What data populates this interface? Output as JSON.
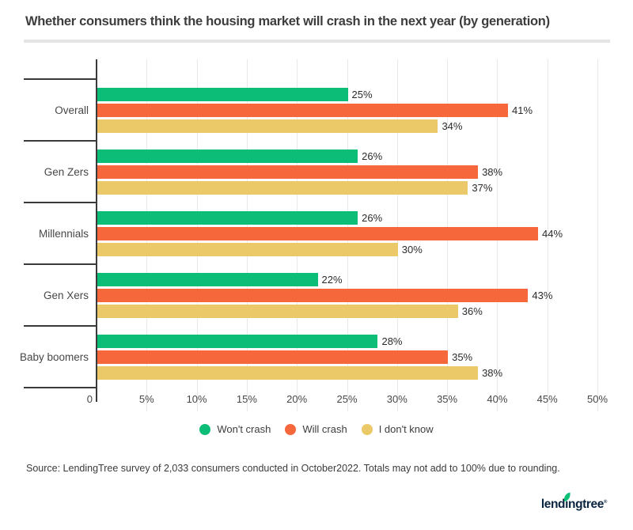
{
  "title": "Whether consumers think the housing market will crash in the next year (by generation)",
  "chart_data": {
    "type": "bar",
    "orientation": "horizontal",
    "title": "Whether consumers think the housing market will crash in the next year (by generation)",
    "categories": [
      "Overall",
      "Gen Zers",
      "Millennials",
      "Gen Xers",
      "Baby boomers"
    ],
    "series": [
      {
        "name": "Won't crash",
        "color": "#0cbd78",
        "values": [
          25,
          26,
          26,
          22,
          28
        ]
      },
      {
        "name": "Will crash",
        "color": "#f6673c",
        "values": [
          41,
          38,
          44,
          43,
          35
        ]
      },
      {
        "name": "I don't know",
        "color": "#ebc868",
        "values": [
          34,
          37,
          30,
          36,
          38
        ]
      }
    ],
    "value_suffix": "%",
    "xlim": [
      0,
      50
    ],
    "x_ticks": [
      "0",
      "5%",
      "10%",
      "15%",
      "20%",
      "25%",
      "30%",
      "35%",
      "40%",
      "45%",
      "50%"
    ],
    "grid": true,
    "legend_position": "bottom"
  },
  "source_note": "Source: LendingTree survey of 2,033 consumers conducted in October2022. Totals may not add to 100% due to rounding.",
  "footer": {
    "logo_text": "lendingtree",
    "trademark": "®",
    "logo_color": "#0b2440",
    "leaf_color": "#0cc177"
  }
}
